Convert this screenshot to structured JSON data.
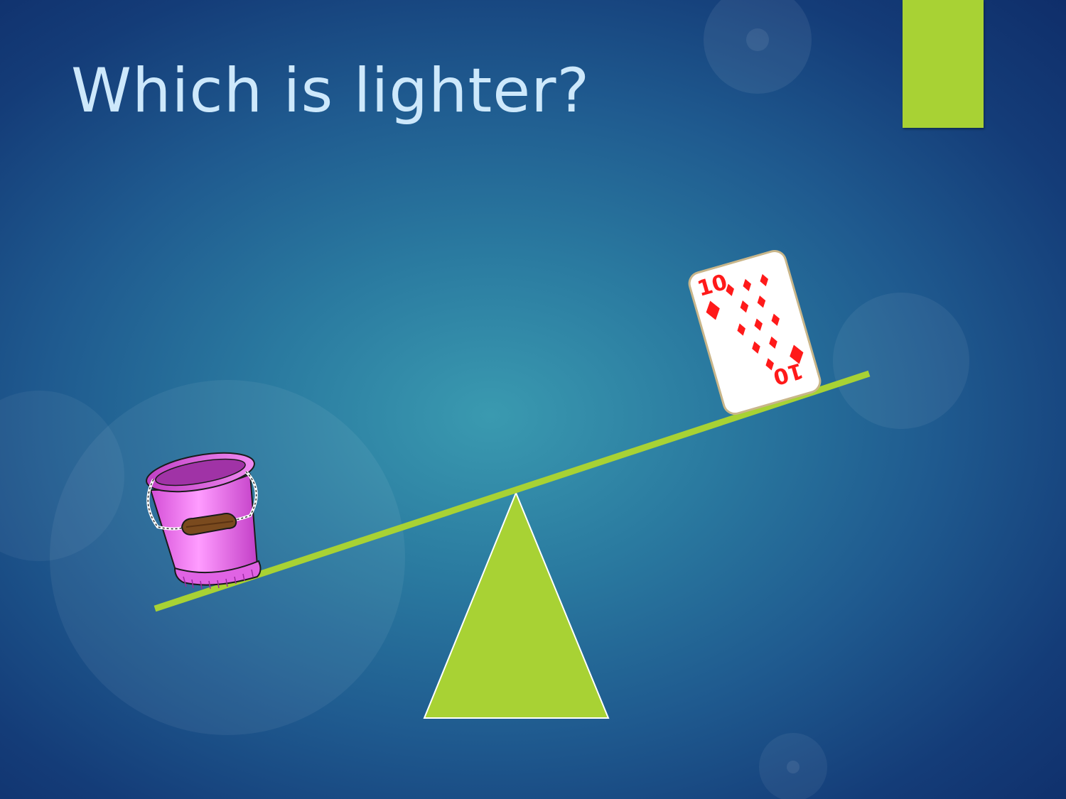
{
  "slide": {
    "title": "Which is lighter?"
  },
  "objects": {
    "left_item": "pink bucket",
    "right_item": "playing card",
    "card_rank": "10",
    "card_suit": "diamonds"
  },
  "icons": {
    "bucket": "bucket-icon",
    "card": "playing-card-icon",
    "fulcrum": "triangle-fulcrum",
    "beam": "seesaw-beam"
  },
  "colors": {
    "accent_green": "#a8d234",
    "title_text": "#cde8fb",
    "bucket_pink": "#f07af0",
    "card_red": "#ff1a1a"
  }
}
